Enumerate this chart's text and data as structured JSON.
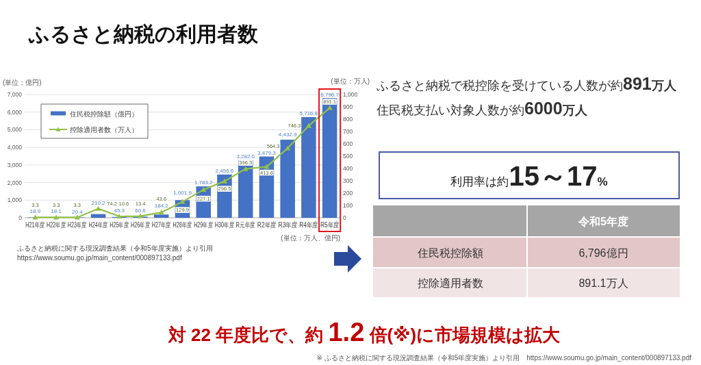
{
  "chart_data": [
    {
      "type": "bar",
      "title": "ふるさと納税の利用者数",
      "xlabel": "(単位：万人、億円)",
      "ylabel": "(単位：億円)",
      "y2label": "(単位：万人)",
      "categories": [
        "H21年度",
        "H22年度",
        "H23年度",
        "H24年度",
        "H25年度",
        "H26年度",
        "H27年度",
        "H28年度",
        "H29年度",
        "H30年度",
        "R元年度",
        "R2年度",
        "R3年度",
        "R4年度",
        "R5年度"
      ],
      "series": [
        {
          "name": "住民税控除額（億円）",
          "type": "bar",
          "color": "#4472c4",
          "values": [
            18.9,
            18.1,
            20.4,
            210.2,
            45.3,
            60.6,
            184.2,
            1001.9,
            1783.2,
            2456.6,
            3282.0,
            3479.3,
            4432.9,
            5716.8,
            6796.7
          ],
          "value_labels": [
            "18.9",
            "18.1",
            "20.4",
            "210.2",
            "45.3",
            "60.6",
            "184.2",
            "1,001.9",
            "1,783.2",
            "2,456.6",
            "3,282.0",
            "3,479.3",
            "4,432.9",
            "5,716.8",
            "6,796.7"
          ]
        },
        {
          "name": "控除適用者数（万人）",
          "type": "line",
          "axis": "y2",
          "color": "#92c04a",
          "values": [
            3.3,
            3.3,
            3.3,
            74.2,
            10.6,
            13.4,
            43.6,
            129.9,
            227.1,
            296.5,
            396.3,
            413.6,
            564.3,
            746.3,
            891.1
          ],
          "value_labels": [
            "3.3",
            "3.3",
            "3.3",
            "74.2",
            "10.6",
            "13.4",
            "43.6",
            "129.9",
            "227.1",
            "296.5",
            "396.3",
            "413.6",
            "564.3",
            "746.3",
            "891.1"
          ]
        }
      ],
      "ylim": [
        0,
        7000
      ],
      "yticks": [
        0,
        {
          "value": 1000,
          "label": "1,000"
        },
        {
          "value": 2000,
          "label": "2,000"
        },
        {
          "value": 3000,
          "label": "3,000"
        },
        {
          "value": 4000,
          "label": "4,000"
        },
        {
          "value": 5000,
          "label": "5,000"
        },
        {
          "value": 6000,
          "label": "6,000"
        },
        {
          "value": 7000,
          "label": "7,000"
        }
      ],
      "y2lim": [
        0,
        1000
      ],
      "y2ticks": [
        0,
        100,
        200,
        300,
        400,
        500,
        600,
        700,
        800,
        900,
        {
          "value": 1000,
          "label": "1,000"
        }
      ],
      "grid": "y",
      "legend": "top left",
      "marker": "triangle",
      "annotations": [
        "ふるさと納税に関する現況調査結果（令和5年度実施）より引用",
        "https://www.soumu.go.jp/main_content/000897133.pdf"
      ]
    },
    {
      "type": "other",
      "annotations": [
        "ふるさと納税で税控除を受けている人数が約**891万人**",
        "住民税支払い対象人数が約**6000万人**",
        "利用率は約**15～17%**",
        "令和5年度",
        "住民税控除額",
        "6,796億円",
        "控除適用者数",
        "891.1万人",
        "対 22 年度比で、約 **1.2** 倍(※)に市場規模は拡大",
        "※ ふるさと納税に関する現況調査結果（令和5年度実施）より引用　https://www.soumu.go.jp/main_content/000897133.pdf"
      ]
    }
  ]
}
